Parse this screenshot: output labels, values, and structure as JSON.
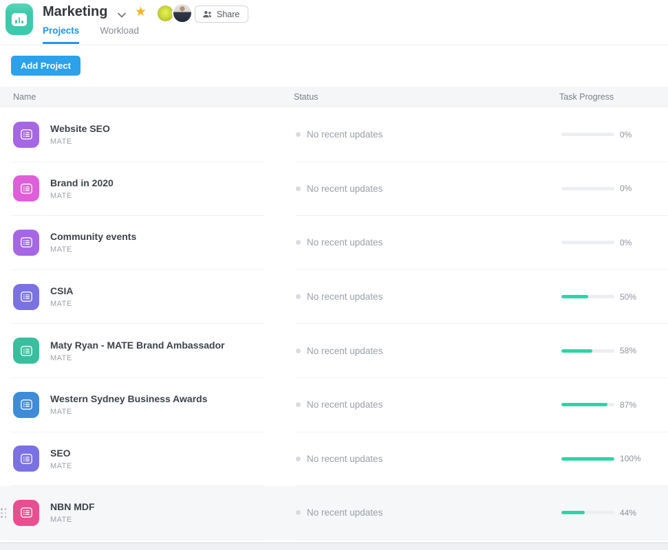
{
  "header": {
    "title": "Marketing",
    "share_label": "Share",
    "tabs": [
      {
        "label": "Projects",
        "active": true
      },
      {
        "label": "Workload",
        "active": false
      }
    ],
    "accent_color": "#2492e8",
    "star_color": "#f6b51e"
  },
  "toolbar": {
    "add_project_label": "Add Project"
  },
  "table": {
    "columns": {
      "name": "Name",
      "status": "Status",
      "progress": "Task Progress"
    },
    "status_text": "No recent updates",
    "progress_fill_color": "#2bd6a5",
    "rows": [
      {
        "name": "Website SEO",
        "subtitle": "MATE",
        "icon_color": "#a667e4",
        "progress": 0,
        "progress_label": "0%",
        "hovered": false
      },
      {
        "name": "Brand in 2020",
        "subtitle": "MATE",
        "icon_color": "#de5fd9",
        "progress": 0,
        "progress_label": "0%",
        "hovered": false
      },
      {
        "name": "Community events",
        "subtitle": "MATE",
        "icon_color": "#a667e4",
        "progress": 0,
        "progress_label": "0%",
        "hovered": false
      },
      {
        "name": "CSIA",
        "subtitle": "MATE",
        "icon_color": "#7a72e2",
        "progress": 50,
        "progress_label": "50%",
        "hovered": false
      },
      {
        "name": "Maty Ryan - MATE Brand Ambassador",
        "subtitle": "MATE",
        "icon_color": "#38bf9e",
        "progress": 58,
        "progress_label": "58%",
        "hovered": false
      },
      {
        "name": "Western Sydney Business Awards",
        "subtitle": "MATE",
        "icon_color": "#3e8cd8",
        "progress": 87,
        "progress_label": "87%",
        "hovered": false
      },
      {
        "name": "SEO",
        "subtitle": "MATE",
        "icon_color": "#7a72e2",
        "progress": 100,
        "progress_label": "100%",
        "hovered": false
      },
      {
        "name": "NBN MDF",
        "subtitle": "MATE",
        "icon_color": "#e94f90",
        "progress": 44,
        "progress_label": "44%",
        "hovered": true
      }
    ]
  }
}
